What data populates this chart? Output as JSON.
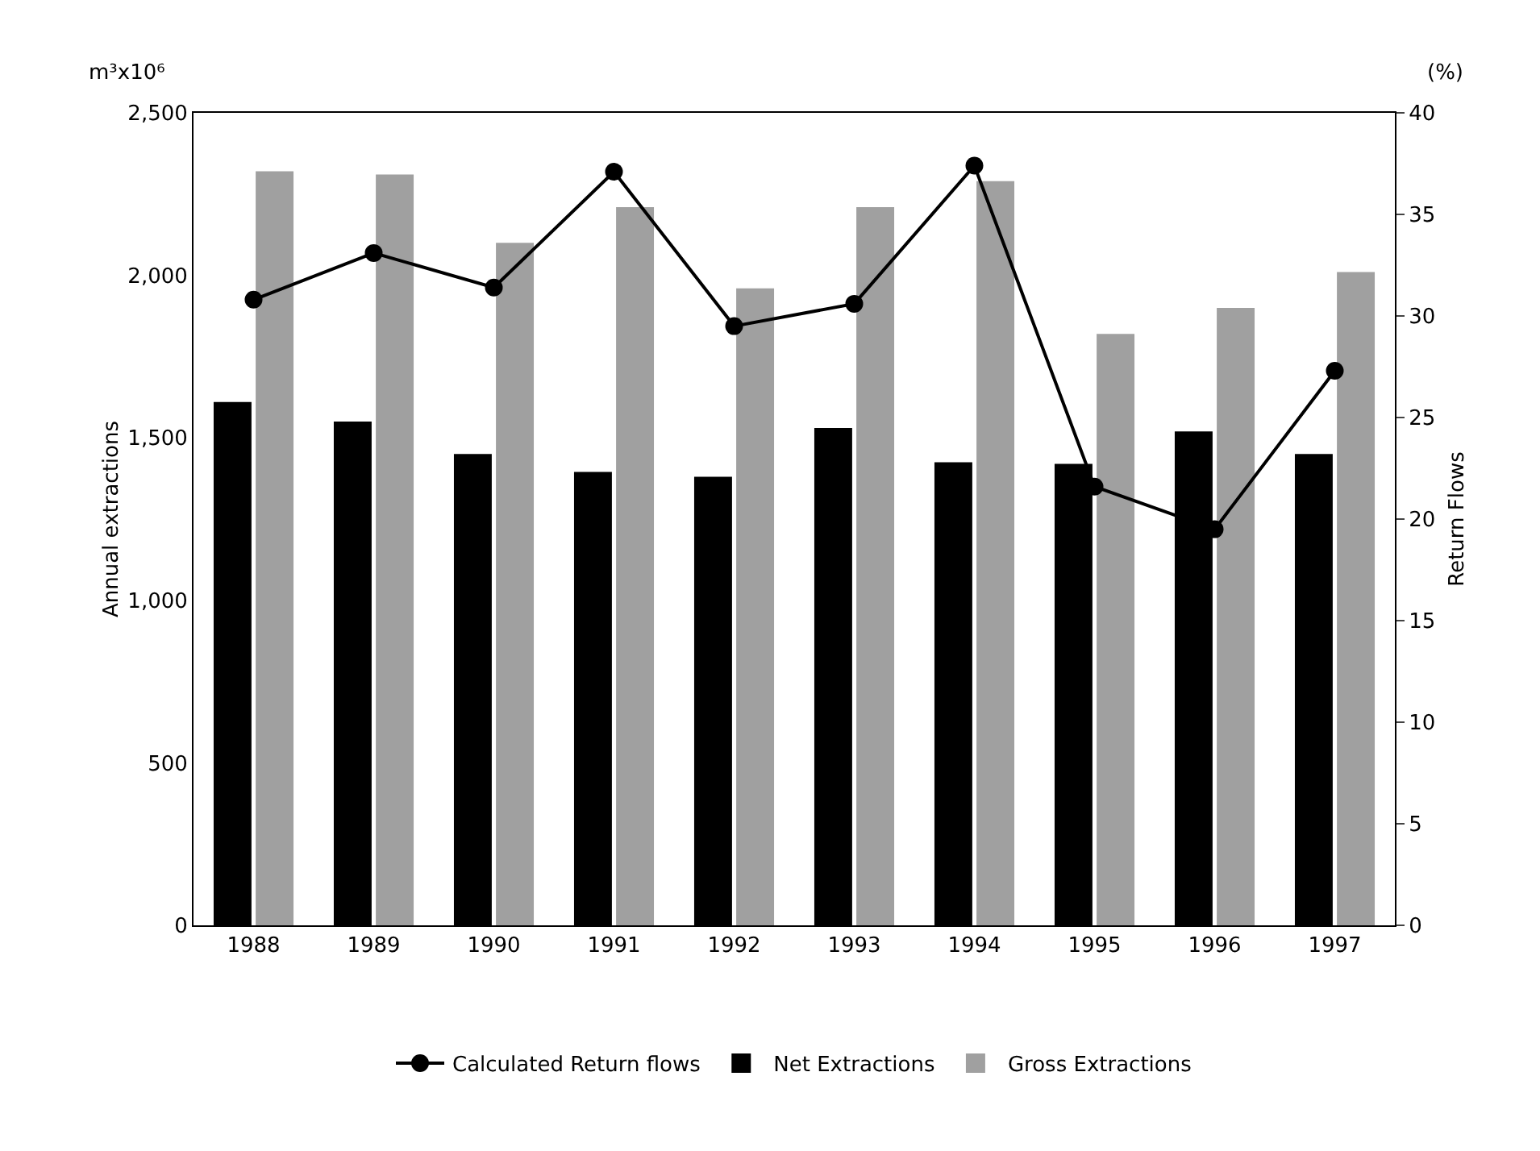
{
  "chart_data": {
    "type": "bar",
    "categories": [
      "1988",
      "1989",
      "1990",
      "1991",
      "1992",
      "1993",
      "1994",
      "1995",
      "1996",
      "1997"
    ],
    "series": [
      {
        "name": "Calculated Return flows",
        "type": "line",
        "axis": "y2",
        "color": "#000000",
        "values": [
          30.8,
          33.1,
          31.4,
          37.1,
          29.5,
          30.6,
          37.4,
          21.6,
          19.5,
          27.3
        ]
      },
      {
        "name": "Net Extractions",
        "color": "#000000",
        "values": [
          1610,
          1550,
          1450,
          1395,
          1380,
          1530,
          1425,
          1420,
          1520,
          1450
        ]
      },
      {
        "name": "Gross Extractions",
        "color": "#a0a0a0",
        "values": [
          2320,
          2310,
          2100,
          2210,
          1960,
          2210,
          2290,
          1820,
          1900,
          2010
        ]
      }
    ],
    "ylabel": "Annual extractions",
    "y2label": "Return Flows",
    "annotations": [
      "m³x10⁶",
      "(%)"
    ],
    "ylim": [
      0,
      2500
    ],
    "yticks": [
      0,
      500,
      {
        "value": 1000,
        "label": "1,000"
      },
      {
        "value": 1500,
        "label": "1,500"
      },
      {
        "value": 2000,
        "label": "2,000"
      },
      {
        "value": 2500,
        "label": "2,500"
      }
    ],
    "y2lim": [
      0,
      40
    ],
    "y2ticks": [
      0,
      5,
      10,
      15,
      20,
      25,
      30,
      35,
      40
    ],
    "marker": "circle",
    "grid": false,
    "legend": "bottom"
  }
}
